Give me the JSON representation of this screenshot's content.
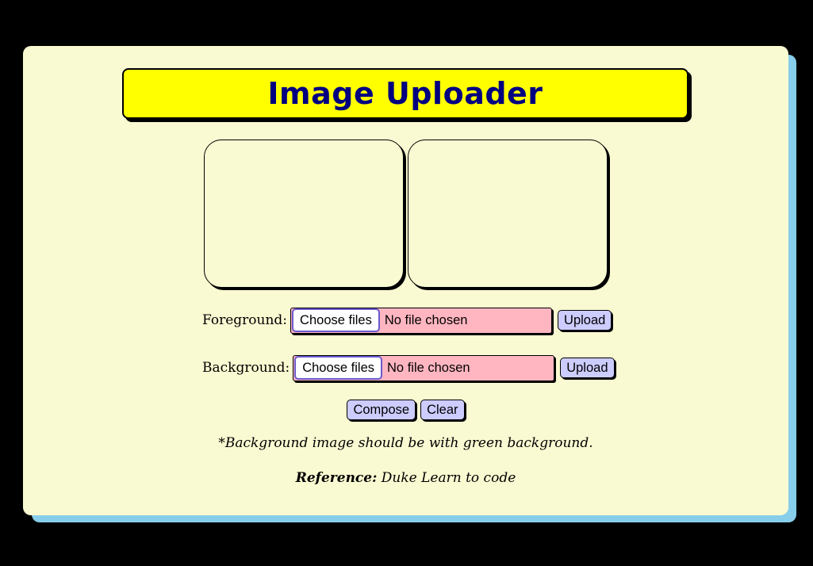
{
  "header": {
    "title": "Image Uploader"
  },
  "foreground": {
    "label": "Foreground:",
    "choose_label": "Choose files",
    "status": "No file chosen",
    "upload_label": "Upload"
  },
  "background": {
    "label": "Background:",
    "choose_label": "Choose files",
    "status": "No file chosen",
    "upload_label": "Upload"
  },
  "actions": {
    "compose_label": "Compose",
    "clear_label": "Clear"
  },
  "note": "*Background image should be with green background.",
  "reference": {
    "label": "Reference:",
    "text": "Duke Learn to code"
  },
  "colors": {
    "page_background": "#000000",
    "card": "#FAFAD2",
    "card_shadow": "#87CEEB",
    "title_box": "#FFFF00",
    "title_text": "#000080",
    "file_input": "#FFB6C1",
    "button": "#CCCCFF"
  }
}
